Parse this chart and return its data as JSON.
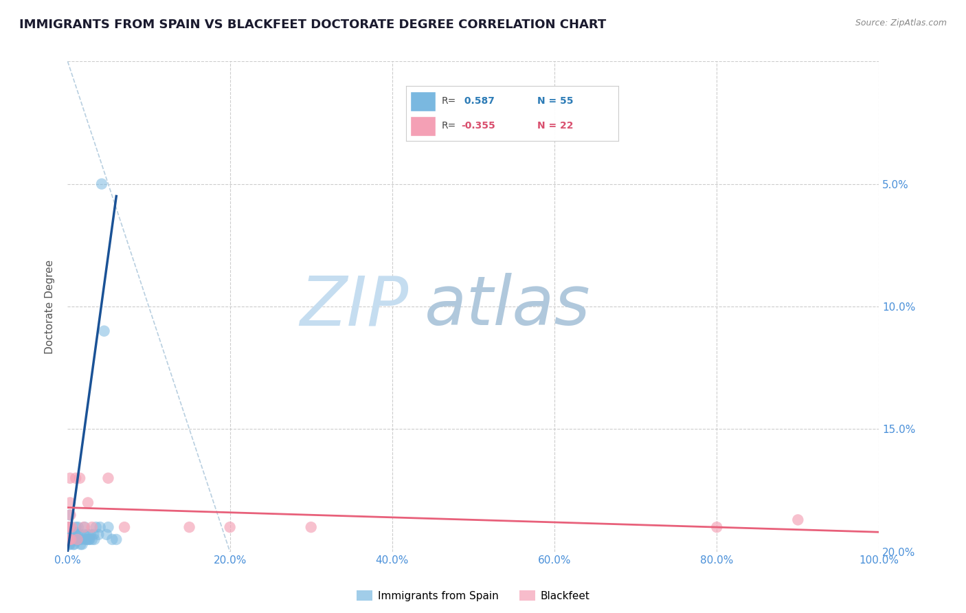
{
  "title": "IMMIGRANTS FROM SPAIN VS BLACKFEET DOCTORATE DEGREE CORRELATION CHART",
  "source": "Source: ZipAtlas.com",
  "ylabel": "Doctorate Degree",
  "xlim": [
    0,
    100.0
  ],
  "ylim": [
    0,
    0.2
  ],
  "xticks": [
    0.0,
    20.0,
    40.0,
    60.0,
    80.0,
    100.0
  ],
  "yticks": [
    0.0,
    0.05,
    0.1,
    0.15,
    0.2
  ],
  "xticklabels": [
    "0.0%",
    "20.0%",
    "40.0%",
    "60.0%",
    "80.0%",
    "100.0%"
  ],
  "yticklabels_right": [
    "20.0%",
    "15.0%",
    "10.0%",
    "5.0%",
    ""
  ],
  "legend_label1": "Immigrants from Spain",
  "legend_label2": "Blackfeet",
  "blue_color": "#7ab8e0",
  "blue_line_color": "#1a5296",
  "blue_r_color": "#2c7bb6",
  "pink_color": "#f4a0b5",
  "pink_line_color": "#e8607a",
  "pink_r_color": "#d94f6e",
  "diag_color": "#b8cfe0",
  "blue_scatter_x": [
    0.1,
    0.1,
    0.15,
    0.2,
    0.2,
    0.2,
    0.25,
    0.3,
    0.3,
    0.3,
    0.3,
    0.3,
    0.4,
    0.4,
    0.4,
    0.5,
    0.5,
    0.5,
    0.6,
    0.7,
    0.7,
    0.8,
    0.8,
    0.9,
    1.0,
    1.0,
    1.1,
    1.2,
    1.2,
    1.3,
    1.4,
    1.5,
    1.6,
    1.7,
    1.8,
    2.0,
    2.1,
    2.2,
    2.4,
    2.5,
    2.6,
    2.7,
    2.8,
    3.0,
    3.2,
    3.3,
    3.5,
    3.8,
    4.0,
    4.2,
    4.5,
    4.8,
    5.0,
    5.5,
    6.0
  ],
  "blue_scatter_y": [
    0.005,
    0.005,
    0.01,
    0.003,
    0.005,
    0.007,
    0.015,
    0.003,
    0.005,
    0.005,
    0.007,
    0.008,
    0.004,
    0.005,
    0.006,
    0.005,
    0.007,
    0.008,
    0.008,
    0.003,
    0.005,
    0.003,
    0.006,
    0.005,
    0.01,
    0.008,
    0.005,
    0.005,
    0.007,
    0.01,
    0.005,
    0.007,
    0.003,
    0.005,
    0.003,
    0.007,
    0.01,
    0.005,
    0.005,
    0.007,
    0.005,
    0.005,
    0.007,
    0.005,
    0.007,
    0.005,
    0.01,
    0.007,
    0.01,
    0.15,
    0.09,
    0.007,
    0.01,
    0.005,
    0.005
  ],
  "pink_scatter_x": [
    0.1,
    0.15,
    0.2,
    0.2,
    0.3,
    0.3,
    0.35,
    0.4,
    0.5,
    1.0,
    1.2,
    1.5,
    2.0,
    2.5,
    3.0,
    5.0,
    7.0,
    15.0,
    20.0,
    30.0,
    80.0,
    90.0
  ],
  "pink_scatter_y": [
    0.01,
    0.005,
    0.005,
    0.01,
    0.02,
    0.03,
    0.015,
    0.005,
    0.01,
    0.03,
    0.005,
    0.03,
    0.01,
    0.02,
    0.01,
    0.03,
    0.01,
    0.01,
    0.01,
    0.01,
    0.01,
    0.013
  ],
  "blue_line_x": [
    0.0,
    6.0
  ],
  "blue_line_y": [
    0.0,
    0.145
  ],
  "pink_line_x": [
    0.0,
    100.0
  ],
  "pink_line_y": [
    0.018,
    0.008
  ],
  "diag_line_x": [
    0.0,
    20.0
  ],
  "diag_line_y": [
    0.2,
    0.0
  ]
}
